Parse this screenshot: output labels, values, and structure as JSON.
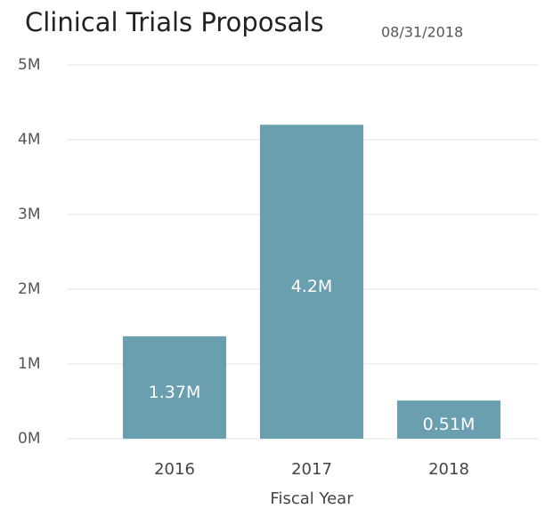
{
  "chart_data": {
    "type": "bar",
    "title": "Clinical Trials Proposals",
    "subtitle": "08/31/2018",
    "x_label": "Fiscal Year",
    "categories": [
      "2016",
      "2017",
      "2018"
    ],
    "values": [
      1370000,
      4200000,
      510000
    ],
    "value_labels": [
      "1.37M",
      "4.2M",
      "0.51M"
    ],
    "color": "#6a9fb0",
    "ylim": [
      0,
      5000000
    ],
    "yticks": [
      {
        "value": 0,
        "label": "0M"
      },
      {
        "value": 1000000,
        "label": "1M"
      },
      {
        "value": 2000000,
        "label": "2M"
      },
      {
        "value": 3000000,
        "label": "3M"
      },
      {
        "value": 4000000,
        "label": "4M"
      },
      {
        "value": 5000000,
        "label": "5M"
      }
    ],
    "grid": true
  }
}
